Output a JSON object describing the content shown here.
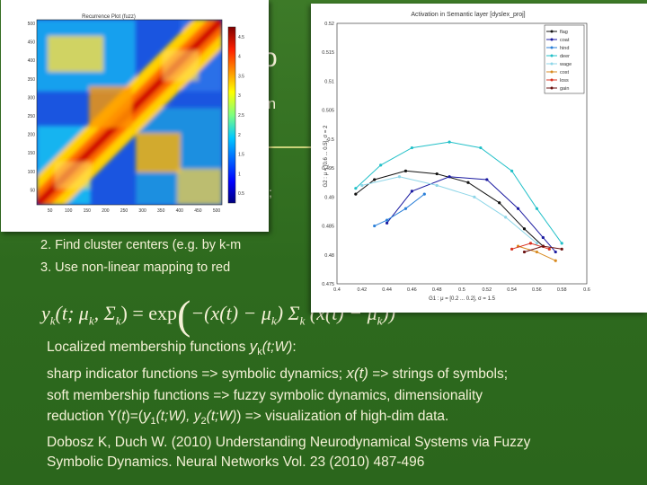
{
  "slide": {
    "title_fragment": "o",
    "subtitle_fragment": "(n",
    "x_fragment": "x;",
    "step2": "2. Find cluster centers (e.g. by k-m",
    "step3": "3. Use non-linear mapping to red",
    "equation": {
      "lhs": "y",
      "lhs_sub": "k",
      "lhs_args": "(t; μ",
      "args_sub1": "k",
      "args_sep": ", Σ",
      "args_sub2": "k",
      "args_close": ") = exp",
      "paren": "(",
      "rest": "−(x(t) − μ",
      "rest_sub": "k",
      "rest2": ")  Σ",
      "rest_sub2": "k",
      "rest3": " (x(t) − μ",
      "rest_sub3": "k",
      "rest4": "))"
    },
    "paragraphs": {
      "p1_a": "Localized membership functions ",
      "p1_b": "y",
      "p1_c": "k",
      "p1_d": "(t;W)",
      "p1_e": ":",
      "p2_a": "sharp indicator functions => symbolic dynamics; ",
      "p2_b": "x(t)",
      "p2_c": " => strings of symbols;",
      "p3": "soft membership functions => fuzzy symbolic dynamics, dimensionality",
      "p4_a": "reduction Y(",
      "p4_b": "t",
      "p4_c": ")=(",
      "p4_d": "y",
      "p4_e": "1",
      "p4_f": "(t;W), y",
      "p4_g": "2",
      "p4_h": "(t;W)",
      "p4_i": ")  => visualization of high-dim data.",
      "p5": "Dobosz K, Duch W. (2010) Understanding Neurodynamical Systems via Fuzzy",
      "p6": "Symbolic Dynamics.  Neural Networks Vol. 23 (2010) 487-496"
    }
  },
  "recurrence_plot": {
    "title": "Recurrence Plot (fuzz)",
    "y_ticks": [
      "500",
      "450",
      "400",
      "350",
      "300",
      "250",
      "200",
      "150",
      "100",
      "50"
    ],
    "x_ticks": [
      "50",
      "100",
      "150",
      "200",
      "250",
      "300",
      "350",
      "400",
      "450",
      "500"
    ],
    "colorbar_ticks": [
      "4.5",
      "4",
      "3.5",
      "3",
      "2.5",
      "2",
      "1.5",
      "1",
      "0.5"
    ],
    "colors": {
      "low": "#00007f",
      "mid": "#00c8ff",
      "high": "#ff2000",
      "max": "#7f0000"
    }
  },
  "chart_data": {
    "type": "line",
    "title": "Activation in Semantic layer [dyslex_proj]",
    "ylabel": "G2 : μ = [0.6 ... 0.5], σ = 2",
    "xlabel": "G1 : μ = [0.2 ... 0.2], σ = 1.5",
    "xlim": [
      0.4,
      0.6
    ],
    "ylim": [
      0.475,
      0.52
    ],
    "x_ticks": [
      "0.4",
      "0.42",
      "0.44",
      "0.46",
      "0.48",
      "0.5",
      "0.52",
      "0.54",
      "0.56",
      "0.58",
      "0.6"
    ],
    "y_ticks": [
      "0.52",
      "0.515",
      "0.51",
      "0.505",
      "0.5",
      "0.495",
      "0.49",
      "0.485",
      "0.48",
      "0.475"
    ],
    "legend_position": "top-right",
    "series": [
      {
        "name": "flag",
        "color": "#111111",
        "points": [
          [
            0.415,
            0.4905
          ],
          [
            0.43,
            0.493
          ],
          [
            0.455,
            0.4945
          ],
          [
            0.48,
            0.494
          ],
          [
            0.505,
            0.4925
          ],
          [
            0.53,
            0.489
          ],
          [
            0.55,
            0.4845
          ],
          [
            0.565,
            0.4815
          ]
        ]
      },
      {
        "name": "coat",
        "color": "#1a1aa0",
        "points": [
          [
            0.44,
            0.4855
          ],
          [
            0.46,
            0.491
          ],
          [
            0.49,
            0.4935
          ],
          [
            0.52,
            0.493
          ],
          [
            0.545,
            0.488
          ],
          [
            0.565,
            0.483
          ],
          [
            0.575,
            0.4805
          ]
        ]
      },
      {
        "name": "hind",
        "color": "#2a7fd8",
        "points": [
          [
            0.43,
            0.485
          ],
          [
            0.44,
            0.486
          ],
          [
            0.455,
            0.488
          ],
          [
            0.47,
            0.4905
          ]
        ]
      },
      {
        "name": "deer",
        "color": "#22c0c8",
        "points": [
          [
            0.415,
            0.4915
          ],
          [
            0.435,
            0.4955
          ],
          [
            0.46,
            0.4985
          ],
          [
            0.49,
            0.4995
          ],
          [
            0.515,
            0.4985
          ],
          [
            0.54,
            0.4945
          ],
          [
            0.56,
            0.488
          ],
          [
            0.58,
            0.482
          ]
        ]
      },
      {
        "name": "wage",
        "color": "#8ed6e8",
        "points": [
          [
            0.42,
            0.492
          ],
          [
            0.45,
            0.4935
          ],
          [
            0.48,
            0.492
          ],
          [
            0.51,
            0.49
          ],
          [
            0.535,
            0.4865
          ],
          [
            0.56,
            0.482
          ]
        ]
      },
      {
        "name": "cost",
        "color": "#d88a20",
        "points": [
          [
            0.545,
            0.4815
          ],
          [
            0.56,
            0.4805
          ],
          [
            0.575,
            0.479
          ]
        ]
      },
      {
        "name": "loss",
        "color": "#d83020",
        "points": [
          [
            0.54,
            0.481
          ],
          [
            0.555,
            0.482
          ],
          [
            0.57,
            0.481
          ]
        ]
      },
      {
        "name": "gain",
        "color": "#6a1010",
        "points": [
          [
            0.55,
            0.4805
          ],
          [
            0.565,
            0.4815
          ],
          [
            0.58,
            0.481
          ]
        ]
      }
    ]
  }
}
